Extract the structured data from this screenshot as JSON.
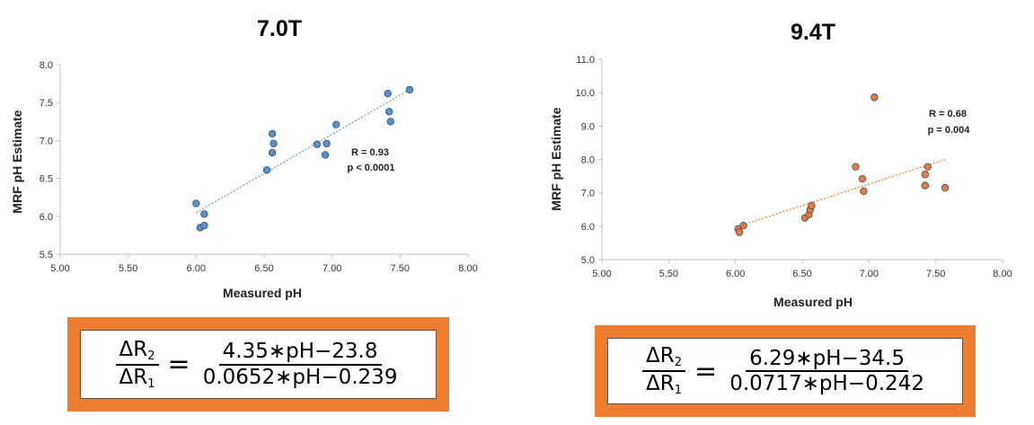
{
  "chart_data": [
    {
      "type": "scatter",
      "title": "7.0T",
      "xlabel": "Measured pH",
      "ylabel": "MRF pH Estimate",
      "xlim": [
        5.0,
        8.0
      ],
      "ylim": [
        5.5,
        8.0
      ],
      "xticks": [
        "5.00",
        "5.50",
        "6.00",
        "6.50",
        "7.00",
        "7.50",
        "8.00"
      ],
      "yticks": [
        "5.5",
        "6.0",
        "6.5",
        "7.0",
        "7.5",
        "8.0"
      ],
      "marker_color": "#5B8FC9",
      "trend_color": "#5B9BD5",
      "trendline": {
        "x": [
          6.0,
          7.57
        ],
        "y": [
          6.05,
          7.67
        ]
      },
      "annotations": [
        "R = 0.93",
        "p < 0.0001"
      ],
      "points": [
        {
          "x": 6.0,
          "y": 6.17
        },
        {
          "x": 6.03,
          "y": 5.85
        },
        {
          "x": 6.06,
          "y": 6.03
        },
        {
          "x": 6.06,
          "y": 5.88
        },
        {
          "x": 6.52,
          "y": 6.61
        },
        {
          "x": 6.56,
          "y": 7.09
        },
        {
          "x": 6.57,
          "y": 6.96
        },
        {
          "x": 6.56,
          "y": 6.84
        },
        {
          "x": 6.89,
          "y": 6.95
        },
        {
          "x": 6.95,
          "y": 6.81
        },
        {
          "x": 6.96,
          "y": 6.96
        },
        {
          "x": 7.03,
          "y": 7.21
        },
        {
          "x": 7.41,
          "y": 7.62
        },
        {
          "x": 7.42,
          "y": 7.38
        },
        {
          "x": 7.43,
          "y": 7.25
        },
        {
          "x": 7.57,
          "y": 7.67
        }
      ]
    },
    {
      "type": "scatter",
      "title": "9.4T",
      "xlabel": "Measured pH",
      "ylabel": "MRF pH Estimate",
      "xlim": [
        5.0,
        8.0
      ],
      "ylim": [
        5.0,
        11.0
      ],
      "xticks": [
        "5.00",
        "5.50",
        "6.00",
        "6.50",
        "7.00",
        "7.50",
        "8.00"
      ],
      "yticks": [
        "5.0",
        "6.0",
        "7.0",
        "8.0",
        "9.0",
        "10.0",
        "11.0"
      ],
      "marker_color": "#E87A3E",
      "trend_color": "#ED7D31",
      "trendline": {
        "x": [
          6.02,
          7.57
        ],
        "y": [
          6.0,
          8.0
        ]
      },
      "annotations": [
        "R = 0.68",
        "p = 0.004"
      ],
      "points": [
        {
          "x": 6.02,
          "y": 5.92
        },
        {
          "x": 6.03,
          "y": 5.82
        },
        {
          "x": 6.06,
          "y": 6.02
        },
        {
          "x": 6.52,
          "y": 6.25
        },
        {
          "x": 6.55,
          "y": 6.35
        },
        {
          "x": 6.56,
          "y": 6.5
        },
        {
          "x": 6.57,
          "y": 6.62
        },
        {
          "x": 6.9,
          "y": 7.78
        },
        {
          "x": 6.95,
          "y": 7.42
        },
        {
          "x": 6.96,
          "y": 7.05
        },
        {
          "x": 7.04,
          "y": 9.86
        },
        {
          "x": 7.42,
          "y": 7.55
        },
        {
          "x": 7.42,
          "y": 7.22
        },
        {
          "x": 7.44,
          "y": 7.78
        },
        {
          "x": 7.57,
          "y": 7.15
        }
      ]
    }
  ],
  "equations": [
    {
      "lhs_num": "ΔR",
      "lhs_num_sub": "2",
      "lhs_den": "ΔR",
      "lhs_den_sub": "1",
      "equals": "=",
      "rhs_num": "4.35∗pH−23.8",
      "rhs_den": "0.0652∗pH−0.239"
    },
    {
      "lhs_num": "ΔR",
      "lhs_num_sub": "2",
      "lhs_den": "ΔR",
      "lhs_den_sub": "1",
      "equals": "=",
      "rhs_num": "6.29∗pH−34.5",
      "rhs_den": "0.0717∗pH−0.242"
    }
  ]
}
